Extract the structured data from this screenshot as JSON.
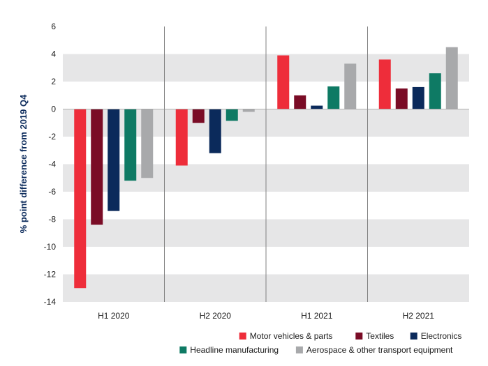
{
  "chart_data": {
    "type": "bar",
    "title": "",
    "xlabel": "",
    "ylabel": "% point difference from 2019 Q4",
    "ylim": [
      -14,
      6
    ],
    "yticks": [
      6,
      4,
      2,
      0,
      -2,
      -4,
      -6,
      -8,
      -10,
      -12,
      -14
    ],
    "categories": [
      "H1 2020",
      "H2 2020",
      "H1 2021",
      "H2 2021"
    ],
    "series": [
      {
        "name": "Motor vehicles & parts",
        "color": "#ee2d3a",
        "values": [
          -13.0,
          -4.1,
          3.9,
          3.6
        ]
      },
      {
        "name": "Textiles",
        "color": "#7a0c26",
        "values": [
          -8.4,
          -1.0,
          1.0,
          1.5
        ]
      },
      {
        "name": "Electronics",
        "color": "#0b2a5b",
        "values": [
          -7.4,
          -3.2,
          0.25,
          1.6
        ]
      },
      {
        "name": "Headline manufacturing",
        "color": "#0e7a64",
        "values": [
          -5.2,
          -0.85,
          1.65,
          2.6
        ]
      },
      {
        "name": "Aerospace & other transport equipment",
        "color": "#a8a9ab",
        "values": [
          -5.0,
          -0.2,
          3.3,
          4.5
        ]
      }
    ],
    "grid": "alternating horizontal bands",
    "legend_position": "bottom-right",
    "band_color": "#e6e6e7",
    "separator_color": "#808080"
  }
}
